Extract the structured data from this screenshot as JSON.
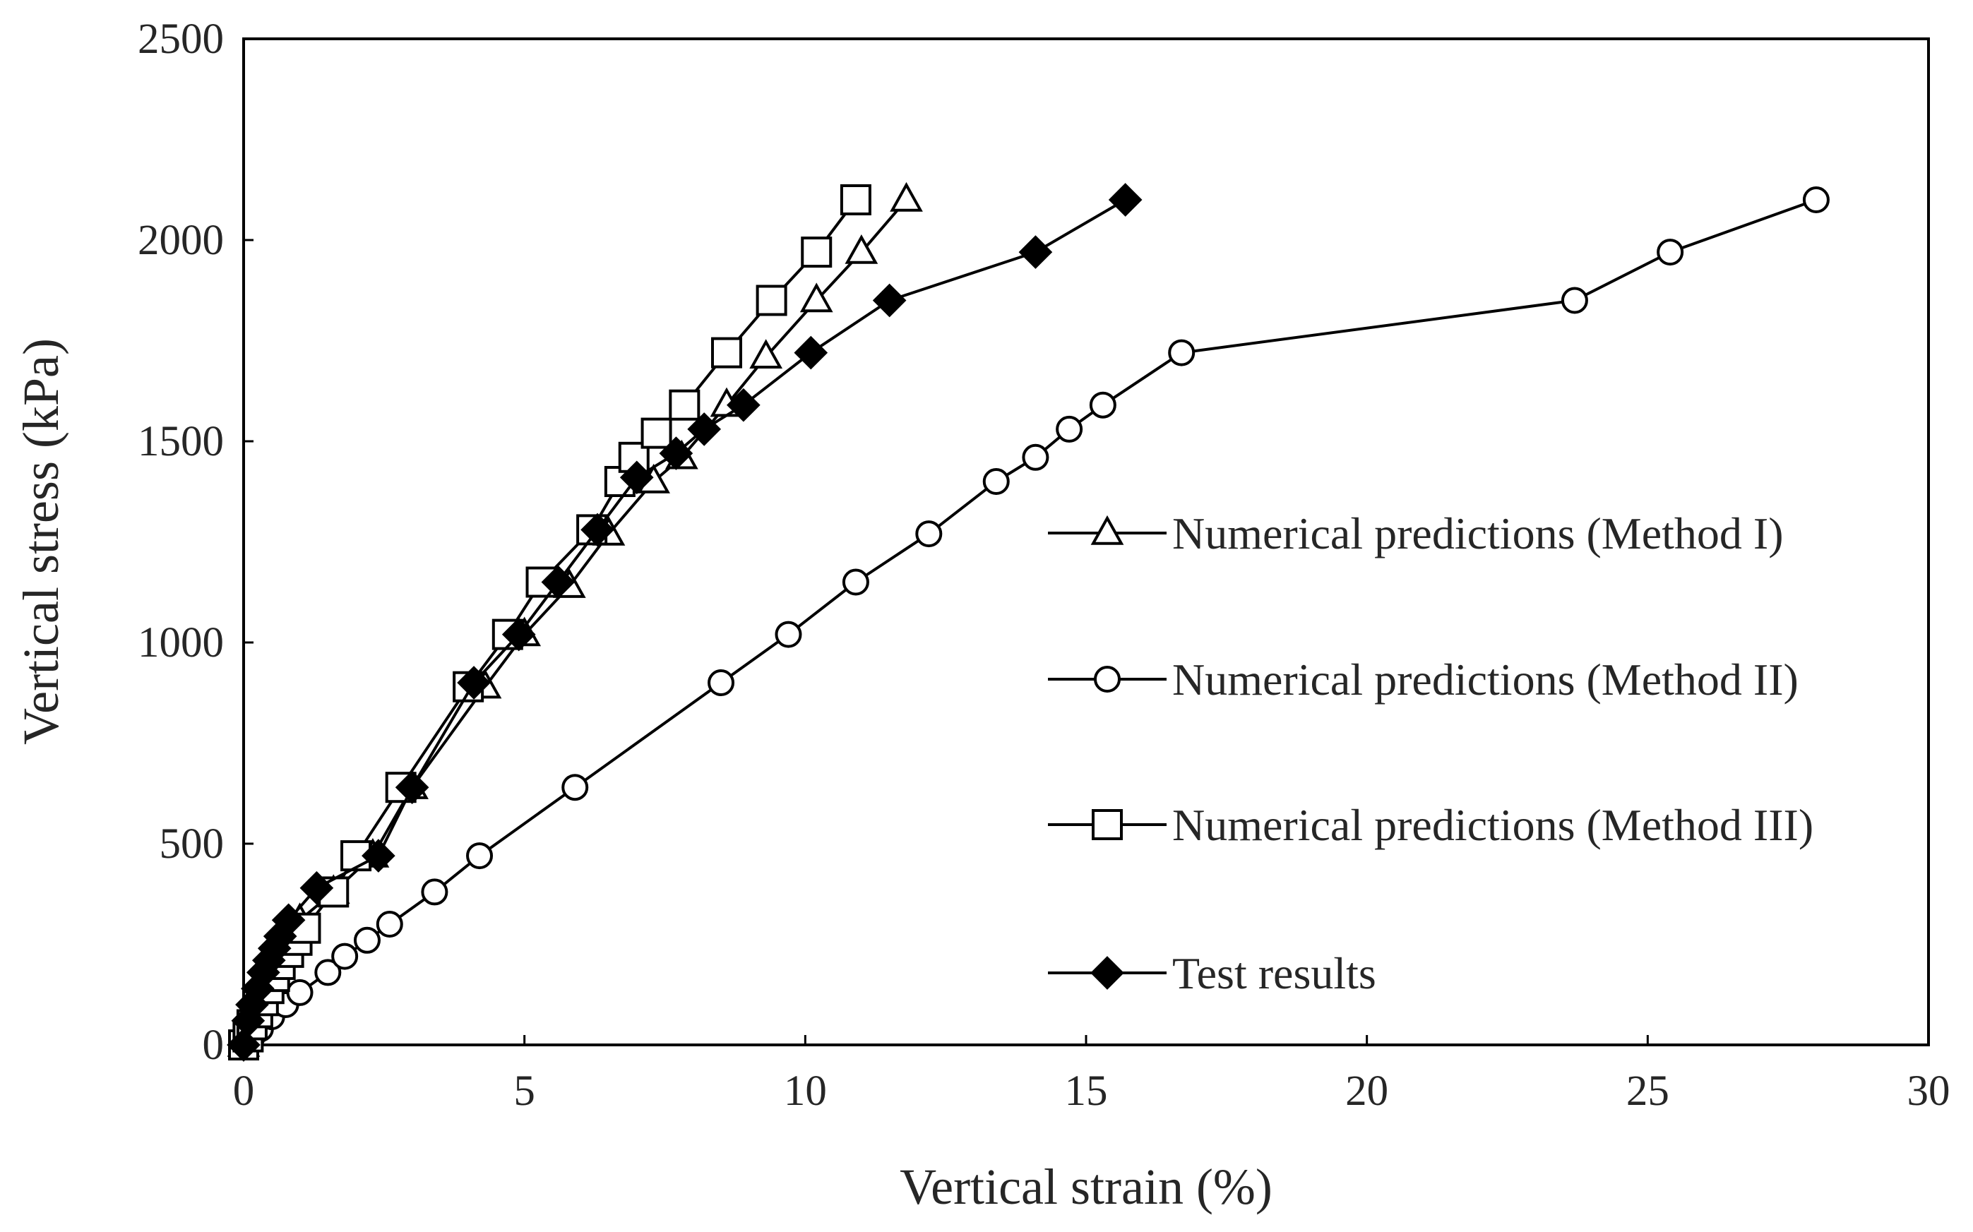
{
  "chart_data": {
    "type": "line",
    "xlabel": "Vertical strain (%)",
    "ylabel": "Vertical stress (kPa)",
    "xlim": [
      0,
      30
    ],
    "ylim": [
      0,
      2500
    ],
    "xticks": [
      0,
      5,
      10,
      15,
      20,
      25,
      30
    ],
    "yticks": [
      0,
      500,
      1000,
      1500,
      2000,
      2500
    ],
    "legend_position": "right",
    "series": [
      {
        "name": "Numerical predictions (Method I)",
        "marker": "triangle",
        "x": [
          0,
          0.08,
          0.15,
          0.25,
          0.35,
          0.45,
          0.55,
          0.7,
          0.85,
          1.0,
          1.6,
          2.3,
          3.0,
          4.3,
          5.0,
          5.8,
          6.5,
          7.3,
          7.8,
          8.6,
          9.3,
          10.2,
          11.0,
          11.8
        ],
        "y": [
          0,
          30,
          60,
          100,
          140,
          170,
          200,
          240,
          280,
          310,
          380,
          470,
          640,
          890,
          1020,
          1140,
          1270,
          1400,
          1460,
          1590,
          1710,
          1850,
          1970,
          2100
        ]
      },
      {
        "name": "Numerical predictions (Method II)",
        "marker": "circle",
        "x": [
          0,
          0.15,
          0.3,
          0.5,
          0.75,
          1.0,
          1.5,
          1.8,
          2.2,
          2.6,
          3.4,
          4.2,
          5.9,
          8.5,
          9.7,
          10.9,
          12.2,
          13.4,
          14.1,
          14.7,
          15.3,
          16.7,
          23.7,
          25.4,
          28.0
        ],
        "y": [
          0,
          20,
          40,
          70,
          100,
          130,
          180,
          220,
          260,
          300,
          380,
          470,
          640,
          900,
          1020,
          1150,
          1270,
          1400,
          1460,
          1530,
          1590,
          1720,
          1850,
          1970,
          2100
        ]
      },
      {
        "name": "Numerical predictions (Method III)",
        "marker": "square",
        "x": [
          0,
          0.08,
          0.15,
          0.25,
          0.35,
          0.45,
          0.55,
          0.65,
          0.8,
          0.95,
          1.1,
          1.6,
          2.0,
          2.8,
          4.0,
          4.7,
          5.3,
          6.2,
          6.7,
          6.95,
          7.35,
          7.85,
          8.6,
          9.4,
          10.2,
          10.9
        ],
        "y": [
          0,
          20,
          50,
          80,
          110,
          140,
          170,
          200,
          230,
          260,
          290,
          380,
          470,
          640,
          890,
          1020,
          1150,
          1280,
          1400,
          1460,
          1520,
          1590,
          1720,
          1850,
          1970,
          2100
        ]
      },
      {
        "name": "Test results",
        "marker": "diamond-filled",
        "x": [
          0,
          0.08,
          0.15,
          0.25,
          0.35,
          0.45,
          0.55,
          0.65,
          0.8,
          1.3,
          2.4,
          3.0,
          4.1,
          4.9,
          5.6,
          6.3,
          7.0,
          7.7,
          8.2,
          8.9,
          10.1,
          11.5,
          14.1,
          15.7
        ],
        "y": [
          0,
          60,
          100,
          140,
          180,
          210,
          240,
          270,
          310,
          390,
          470,
          640,
          900,
          1020,
          1150,
          1280,
          1410,
          1470,
          1530,
          1590,
          1720,
          1850,
          1970,
          2100
        ]
      }
    ]
  }
}
